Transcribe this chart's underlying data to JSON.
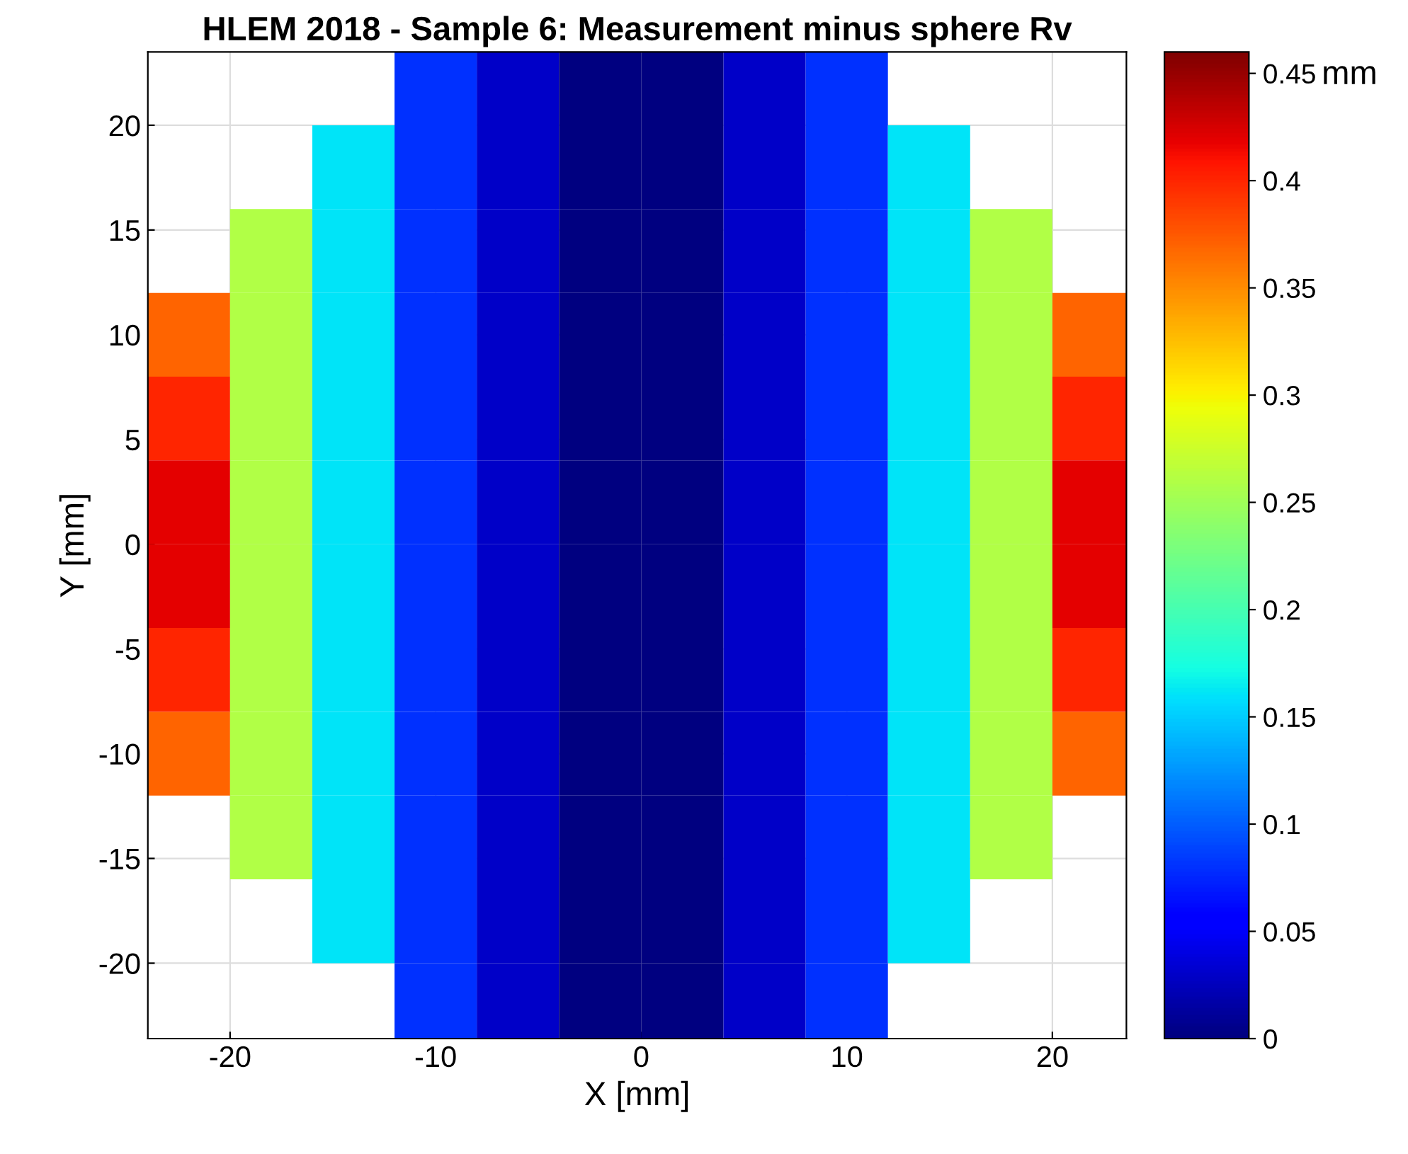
{
  "chart_data": {
    "type": "heatmap",
    "title": "HLEM 2018 - Sample 6: Measurement minus sphere Rv",
    "xlabel": "X [mm]",
    "ylabel": "Y [mm]",
    "clabel": "mm",
    "x": [
      -22,
      -18,
      -14,
      -10,
      -6,
      -2,
      2,
      6,
      10,
      14,
      18,
      22
    ],
    "y": [
      22,
      18,
      14,
      10,
      6,
      2,
      -2,
      -6,
      -10,
      -14,
      -18,
      -22
    ],
    "cells": [
      [
        null,
        null,
        null,
        0.08,
        0.03,
        0.0,
        0.0,
        0.03,
        0.08,
        null,
        null,
        null
      ],
      [
        null,
        null,
        0.16,
        0.08,
        0.03,
        0.0,
        0.0,
        0.03,
        0.08,
        0.16,
        null,
        null
      ],
      [
        null,
        0.26,
        0.16,
        0.08,
        0.03,
        0.0,
        0.0,
        0.03,
        0.08,
        0.16,
        0.26,
        null
      ],
      [
        0.37,
        0.26,
        0.16,
        0.08,
        0.03,
        0.0,
        0.0,
        0.03,
        0.08,
        0.16,
        0.26,
        0.37
      ],
      [
        0.4,
        0.26,
        0.16,
        0.08,
        0.03,
        0.0,
        0.0,
        0.03,
        0.08,
        0.16,
        0.26,
        0.4
      ],
      [
        0.42,
        0.26,
        0.16,
        0.08,
        0.03,
        0.0,
        0.0,
        0.03,
        0.08,
        0.16,
        0.26,
        0.42
      ],
      [
        0.42,
        0.26,
        0.16,
        0.08,
        0.03,
        0.0,
        0.0,
        0.03,
        0.08,
        0.16,
        0.26,
        0.42
      ],
      [
        0.4,
        0.26,
        0.16,
        0.08,
        0.03,
        0.0,
        0.0,
        0.03,
        0.08,
        0.16,
        0.26,
        0.4
      ],
      [
        0.37,
        0.26,
        0.16,
        0.08,
        0.03,
        0.0,
        0.0,
        0.03,
        0.08,
        0.16,
        0.26,
        0.37
      ],
      [
        null,
        0.26,
        0.16,
        0.08,
        0.03,
        0.0,
        0.0,
        0.03,
        0.08,
        0.16,
        0.26,
        null
      ],
      [
        null,
        null,
        0.16,
        0.08,
        0.03,
        0.0,
        0.0,
        0.03,
        0.08,
        0.16,
        null,
        null
      ],
      [
        null,
        null,
        null,
        0.08,
        0.03,
        0.0,
        0.0,
        0.03,
        0.08,
        null,
        null,
        null
      ]
    ],
    "clim": [
      0,
      0.46
    ],
    "cticks": [
      0,
      0.05,
      0.1,
      0.15,
      0.2,
      0.25,
      0.3,
      0.35,
      0.4,
      0.45
    ],
    "xlim": [
      -24,
      23.6
    ],
    "ylim": [
      -23.6,
      23.5
    ],
    "xticks": [
      -20,
      -10,
      0,
      10,
      20
    ],
    "yticks": [
      -20,
      -15,
      -10,
      -5,
      0,
      5,
      10,
      15,
      20
    ],
    "grid": true
  }
}
